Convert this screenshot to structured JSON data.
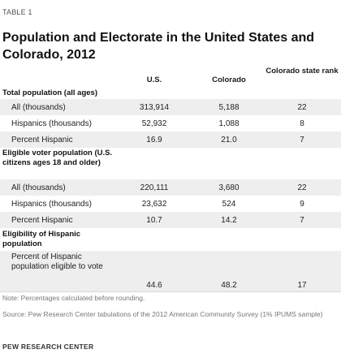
{
  "table_label": "TABLE 1",
  "title": "Population and Electorate in the United States and Colorado, 2012",
  "columns": {
    "us": "U.S.",
    "colorado": "Colorado",
    "rank": "Colorado state rank"
  },
  "sections": {
    "total": {
      "heading": "Total population (all ages)",
      "rows": [
        {
          "label": "All (thousands)",
          "us": "313,914",
          "colorado": "5,188",
          "rank": "22"
        },
        {
          "label": "Hispanics (thousands)",
          "us": "52,932",
          "colorado": "1,088",
          "rank": "8"
        },
        {
          "label": "Percent Hispanic",
          "us": "16.9",
          "colorado": "21.0",
          "rank": "7"
        }
      ]
    },
    "eligible": {
      "heading": "Eligible voter population (U.S. citizens ages 18 and older)",
      "rows": [
        {
          "label": "All (thousands)",
          "us": "220,111",
          "colorado": "3,680",
          "rank": "22"
        },
        {
          "label": "Hispanics (thousands)",
          "us": "23,632",
          "colorado": "524",
          "rank": "9"
        },
        {
          "label": "Percent Hispanic",
          "us": "10.7",
          "colorado": "14.2",
          "rank": "7"
        }
      ]
    },
    "eligibility": {
      "heading": "Eligibility of Hispanic population",
      "rows": [
        {
          "label": "Percent of Hispanic population eligible to vote",
          "us": "44.6",
          "colorado": "48.2",
          "rank": "17"
        }
      ]
    }
  },
  "note": "Note: Percentages calculated before rounding.",
  "source": "Source: Pew Research Center tabulations of the 2012 American Community Survey (1% IPUMS sample)",
  "brand": "PEW RESEARCH CENTER"
}
